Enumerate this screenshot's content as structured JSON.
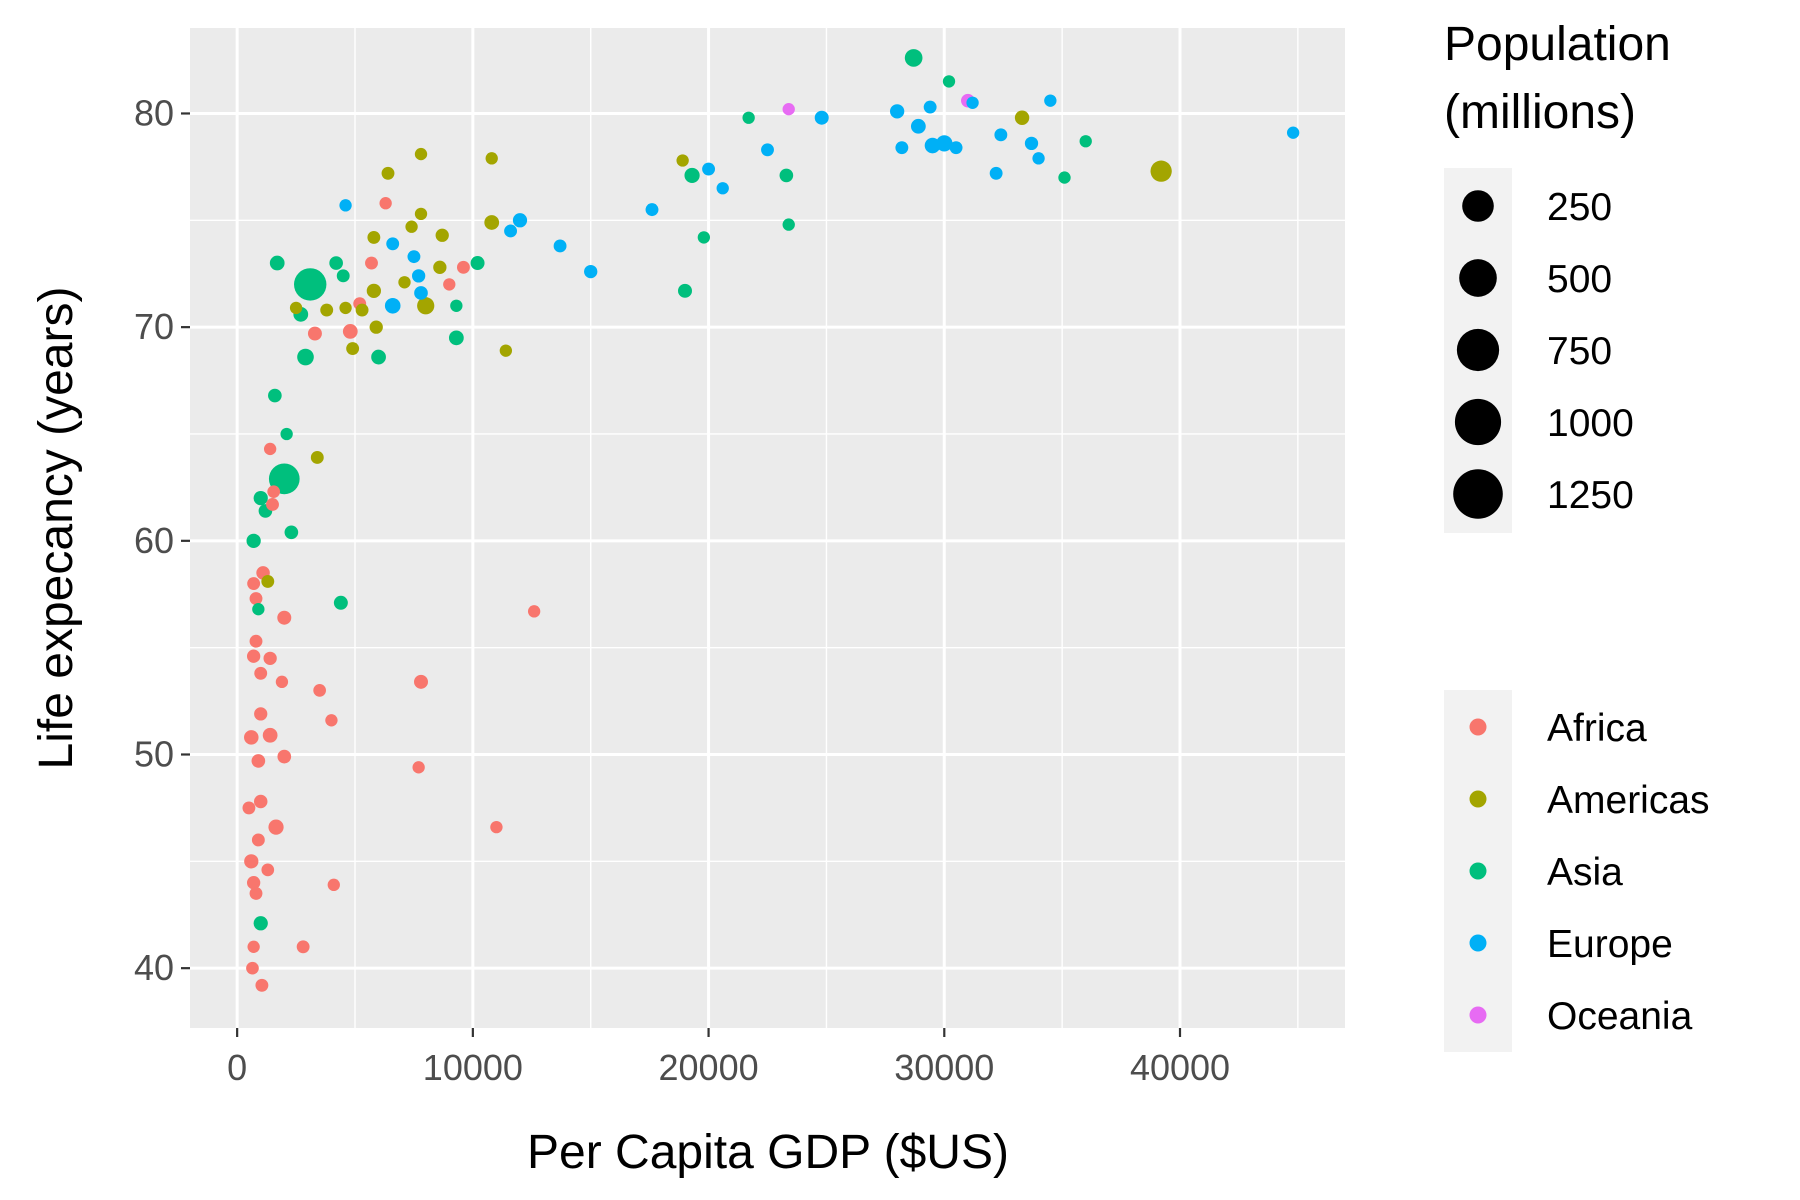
{
  "chart_data": {
    "type": "scatter",
    "xlabel": "Per Capita GDP ($US)",
    "ylabel": "Life expecancy (years)",
    "xlim": [
      -2000,
      47000
    ],
    "ylim": [
      37.2,
      84.0
    ],
    "x_ticks": [
      0,
      10000,
      20000,
      30000,
      40000
    ],
    "x_tick_labels": [
      "0",
      "10000",
      "20000",
      "30000",
      "40000"
    ],
    "y_ticks": [
      40,
      50,
      60,
      70,
      80
    ],
    "y_tick_labels": [
      "40",
      "50",
      "60",
      "70",
      "80"
    ],
    "grid": true,
    "size_legend": {
      "title_line1": "Population",
      "title_line2": "(millions)",
      "values": [
        250,
        500,
        750,
        1000,
        1250
      ],
      "labels": [
        "250",
        "500",
        "750",
        "1000",
        "1250"
      ]
    },
    "color_legend": {
      "labels": [
        "Africa",
        "Americas",
        "Asia",
        "Europe",
        "Oceania"
      ],
      "colors": [
        "#F8766D",
        "#A3A500",
        "#00BF7D",
        "#00B0F6",
        "#E76BF3"
      ]
    },
    "series": [
      {
        "name": "Africa",
        "color": "#F8766D",
        "points": [
          [
            600,
            45.0,
            30
          ],
          [
            700,
            44.0,
            15
          ],
          [
            800,
            43.5,
            10
          ],
          [
            650,
            40.0,
            8
          ],
          [
            1050,
            39.2,
            10
          ],
          [
            700,
            41.0,
            5
          ],
          [
            2800,
            41.0,
            10
          ],
          [
            4100,
            43.9,
            5
          ],
          [
            1300,
            44.6,
            8
          ],
          [
            900,
            46.0,
            10
          ],
          [
            500,
            47.5,
            10
          ],
          [
            1000,
            47.8,
            18
          ],
          [
            1650,
            46.6,
            50
          ],
          [
            1400,
            50.9,
            40
          ],
          [
            600,
            50.8,
            35
          ],
          [
            900,
            49.7,
            20
          ],
          [
            2000,
            49.9,
            20
          ],
          [
            1900,
            53.4,
            5
          ],
          [
            3500,
            53.0,
            8
          ],
          [
            4000,
            51.6,
            5
          ],
          [
            1000,
            51.9,
            15
          ],
          [
            700,
            54.6,
            15
          ],
          [
            1400,
            54.5,
            15
          ],
          [
            1000,
            53.8,
            10
          ],
          [
            800,
            55.3,
            10
          ],
          [
            2000,
            56.4,
            25
          ],
          [
            800,
            57.3,
            10
          ],
          [
            700,
            58.0,
            10
          ],
          [
            1100,
            58.5,
            18
          ],
          [
            1500,
            61.7,
            10
          ],
          [
            1550,
            62.3,
            8
          ],
          [
            1400,
            64.3,
            5
          ],
          [
            7700,
            49.4,
            5
          ],
          [
            11000,
            46.6,
            5
          ],
          [
            12600,
            56.7,
            5
          ],
          [
            7800,
            53.4,
            25
          ],
          [
            3300,
            69.7,
            25
          ],
          [
            4800,
            69.8,
            40
          ],
          [
            5700,
            73.0,
            10
          ],
          [
            6300,
            75.8,
            5
          ],
          [
            9000,
            72.0,
            5
          ],
          [
            9600,
            72.8,
            10
          ],
          [
            5200,
            71.1,
            10
          ]
        ]
      },
      {
        "name": "Americas",
        "color": "#A3A500",
        "points": [
          [
            39200,
            77.3,
            300
          ],
          [
            33300,
            79.8,
            33
          ],
          [
            18900,
            77.8,
            5
          ],
          [
            10800,
            77.9,
            5
          ],
          [
            10800,
            74.9,
            40
          ],
          [
            7800,
            78.1,
            5
          ],
          [
            6400,
            77.2,
            10
          ],
          [
            7800,
            75.3,
            5
          ],
          [
            5800,
            74.2,
            10
          ],
          [
            7400,
            74.7,
            5
          ],
          [
            8700,
            74.3,
            15
          ],
          [
            8600,
            72.8,
            15
          ],
          [
            7100,
            72.1,
            5
          ],
          [
            5800,
            71.7,
            30
          ],
          [
            8000,
            71.0,
            110
          ],
          [
            5300,
            70.8,
            10
          ],
          [
            3800,
            70.8,
            10
          ],
          [
            4600,
            70.9,
            5
          ],
          [
            2500,
            70.9,
            5
          ],
          [
            5900,
            70.0,
            15
          ],
          [
            4900,
            69.0,
            10
          ],
          [
            11400,
            68.9,
            5
          ],
          [
            3400,
            63.9,
            10
          ],
          [
            1300,
            58.1,
            10
          ]
        ]
      },
      {
        "name": "Asia",
        "color": "#00BF7D",
        "points": [
          [
            28700,
            82.6,
            127
          ],
          [
            30200,
            81.5,
            5
          ],
          [
            21700,
            79.8,
            5
          ],
          [
            19300,
            77.1,
            50
          ],
          [
            23300,
            77.1,
            20
          ],
          [
            23400,
            74.8,
            5
          ],
          [
            19800,
            74.2,
            5
          ],
          [
            19000,
            71.7,
            25
          ],
          [
            36000,
            78.7,
            5
          ],
          [
            35100,
            77.0,
            5
          ],
          [
            10200,
            73.0,
            25
          ],
          [
            9300,
            71.0,
            5
          ],
          [
            9300,
            69.5,
            40
          ],
          [
            6000,
            68.6,
            40
          ],
          [
            4500,
            72.4,
            10
          ],
          [
            4200,
            73.0,
            20
          ],
          [
            1700,
            73.0,
            40
          ],
          [
            3100,
            72.0,
            1300
          ],
          [
            2700,
            70.6,
            40
          ],
          [
            2900,
            68.6,
            90
          ],
          [
            2100,
            65.0,
            5
          ],
          [
            1600,
            66.8,
            20
          ],
          [
            2000,
            62.9,
            1100
          ],
          [
            1000,
            62.0,
            30
          ],
          [
            1200,
            61.4,
            20
          ],
          [
            2300,
            60.4,
            20
          ],
          [
            700,
            60.0,
            30
          ],
          [
            4400,
            57.1,
            25
          ],
          [
            900,
            56.8,
            5
          ],
          [
            1000,
            42.1,
            30
          ]
        ]
      },
      {
        "name": "Europe",
        "color": "#00B0F6",
        "points": [
          [
            44800,
            79.1,
            5
          ],
          [
            34500,
            80.6,
            5
          ],
          [
            31200,
            80.5,
            5
          ],
          [
            29400,
            80.3,
            10
          ],
          [
            28000,
            80.1,
            30
          ],
          [
            24800,
            79.8,
            25
          ],
          [
            28900,
            79.4,
            40
          ],
          [
            30000,
            78.6,
            80
          ],
          [
            29500,
            78.5,
            60
          ],
          [
            30500,
            78.4,
            10
          ],
          [
            28200,
            78.4,
            10
          ],
          [
            32400,
            79.0,
            10
          ],
          [
            33700,
            78.6,
            15
          ],
          [
            34000,
            77.9,
            5
          ],
          [
            32200,
            77.2,
            10
          ],
          [
            20000,
            77.4,
            10
          ],
          [
            22500,
            78.3,
            10
          ],
          [
            20600,
            76.5,
            5
          ],
          [
            17600,
            75.5,
            10
          ],
          [
            4600,
            75.7,
            5
          ],
          [
            11600,
            74.5,
            10
          ],
          [
            12000,
            75.0,
            30
          ],
          [
            13700,
            73.8,
            10
          ],
          [
            15000,
            72.6,
            15
          ],
          [
            7500,
            73.3,
            10
          ],
          [
            6600,
            73.9,
            10
          ],
          [
            7700,
            72.4,
            15
          ],
          [
            7800,
            71.6,
            20
          ],
          [
            6600,
            71.0,
            60
          ]
        ]
      },
      {
        "name": "Oceania",
        "color": "#E76BF3",
        "points": [
          [
            23400,
            80.2,
            5
          ],
          [
            31000,
            80.6,
            20
          ]
        ]
      }
    ]
  }
}
